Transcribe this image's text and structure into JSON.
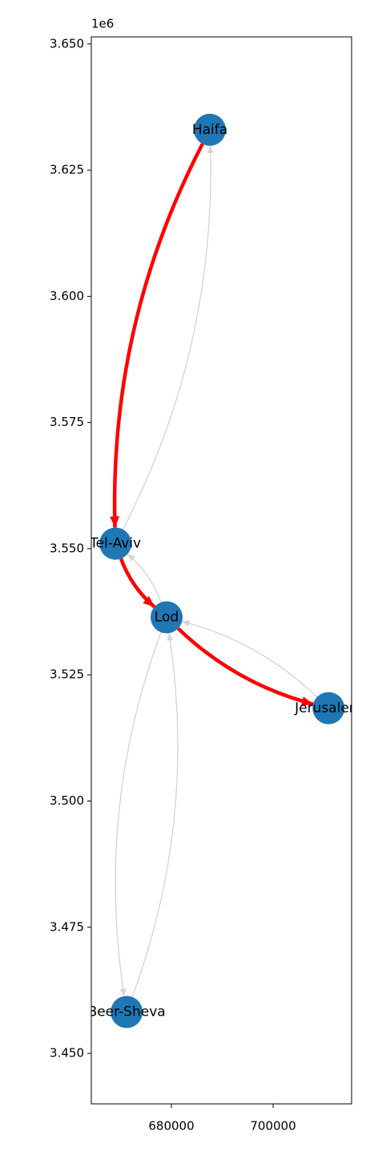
{
  "chart_data": {
    "type": "network",
    "nodes": [
      {
        "name": "Haifa",
        "x": 687560,
        "y": 3633000
      },
      {
        "name": "Tel-Aviv",
        "x": 669000,
        "y": 3551000
      },
      {
        "name": "Lod",
        "x": 679050,
        "y": 3536400
      },
      {
        "name": "Jerusalem",
        "x": 710900,
        "y": 3518400
      },
      {
        "name": "Beer-Sheva",
        "x": 671200,
        "y": 3458200
      }
    ],
    "node_color": "#1f77b4",
    "edges": [
      {
        "source": "Tel-Aviv",
        "target": "Haifa",
        "color": "#d3d3d3"
      },
      {
        "source": "Lod",
        "target": "Tel-Aviv",
        "color": "#d3d3d3"
      },
      {
        "source": "Jerusalem",
        "target": "Lod",
        "color": "#d3d3d3"
      },
      {
        "source": "Lod",
        "target": "Beer-Sheva",
        "color": "#d3d3d3"
      },
      {
        "source": "Beer-Sheva",
        "target": "Lod",
        "color": "#d3d3d3"
      },
      {
        "source": "Haifa",
        "target": "Tel-Aviv",
        "color": "#ff0000"
      },
      {
        "source": "Tel-Aviv",
        "target": "Lod",
        "color": "#ff0000"
      },
      {
        "source": "Lod",
        "target": "Jerusalem",
        "color": "#ff0000"
      }
    ],
    "xlim": [
      664250,
      715430
    ],
    "ylim": [
      3440000,
      3651400
    ],
    "xticks": [
      680000,
      700000
    ],
    "yticks": [
      {
        "value": 3450000,
        "label": "3.450"
      },
      {
        "value": 3475000,
        "label": "3.475"
      },
      {
        "value": 3500000,
        "label": "3.500"
      },
      {
        "value": 3525000,
        "label": "3.525"
      },
      {
        "value": 3550000,
        "label": "3.550"
      },
      {
        "value": 3575000,
        "label": "3.575"
      },
      {
        "value": 3600000,
        "label": "3.600"
      },
      {
        "value": 3625000,
        "label": "3.625"
      },
      {
        "value": 3650000,
        "label": "3.650"
      }
    ],
    "y_offset_label": "1e6"
  }
}
